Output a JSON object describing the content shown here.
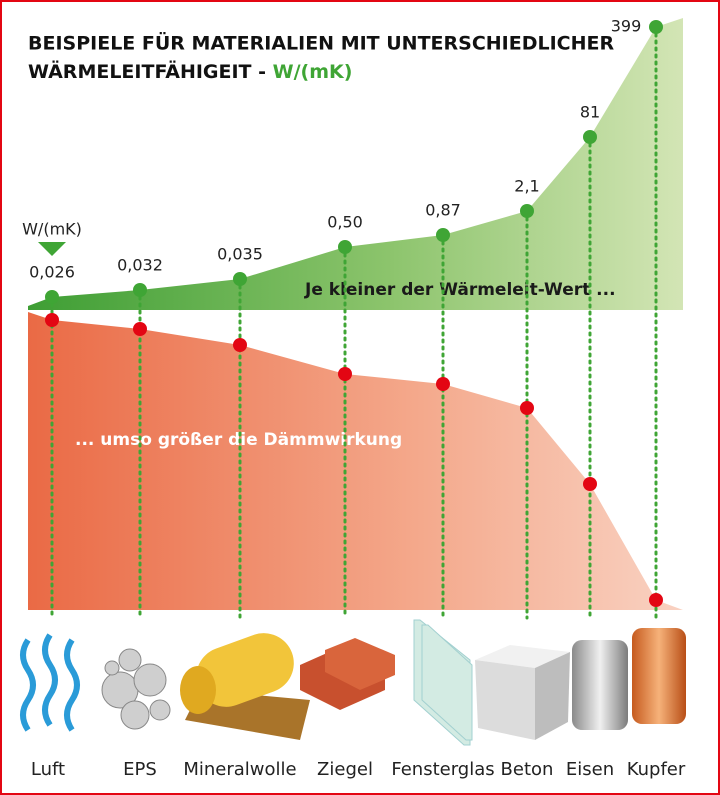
{
  "header": {
    "title_line1": "BEISPIELE FÜR MATERIALIEN MIT UNTERSCHIEDLICHER",
    "title_line2": "WÄRMELEITFÄHIGEIT -",
    "title_unit": "W/(mK)"
  },
  "unit_label": "W/(mK)",
  "upper_caption": "Je kleiner der Wärmeleit-Wert ...",
  "lower_caption": "... umso größer die Dämmwirkung",
  "materials": [
    {
      "name": "Luft",
      "value": "0,026"
    },
    {
      "name": "EPS",
      "value": "0,032"
    },
    {
      "name": "Mineralwolle",
      "value": "0,035"
    },
    {
      "name": "Ziegel",
      "value": "0,50"
    },
    {
      "name": "Fensterglas",
      "value": "0,87"
    },
    {
      "name": "Beton",
      "value": "2,1"
    },
    {
      "name": "Eisen",
      "value": "81"
    },
    {
      "name": "Kupfer",
      "value": "399"
    }
  ]
}
